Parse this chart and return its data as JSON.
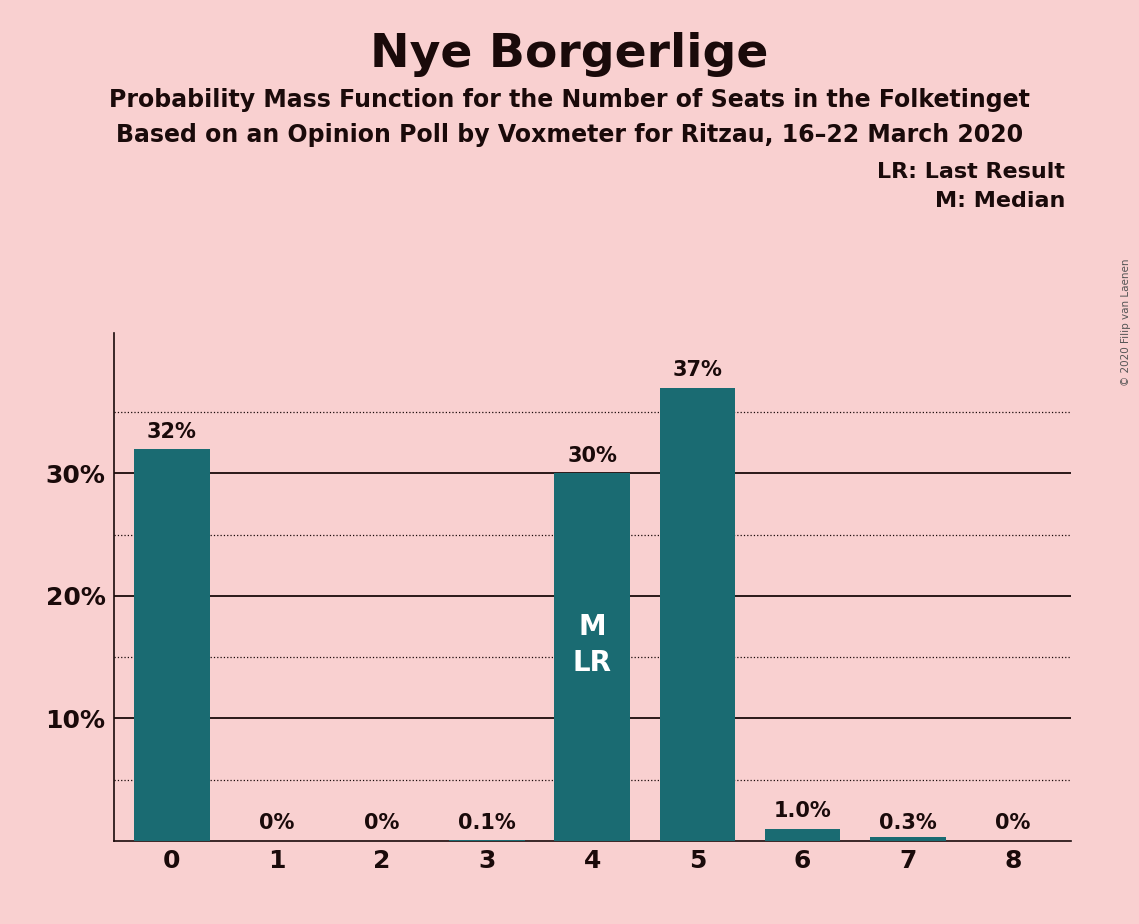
{
  "title": "Nye Borgerlige",
  "subtitle1": "Probability Mass Function for the Number of Seats in the Folketinget",
  "subtitle2": "Based on an Opinion Poll by Voxmeter for Ritzau, 16–22 March 2020",
  "categories": [
    0,
    1,
    2,
    3,
    4,
    5,
    6,
    7,
    8
  ],
  "values": [
    0.32,
    0.0,
    0.0,
    0.001,
    0.3,
    0.37,
    0.01,
    0.003,
    0.0
  ],
  "bar_color": "#1a6b72",
  "background_color": "#f9d0d0",
  "title_fontsize": 34,
  "subtitle_fontsize": 17,
  "bar_labels": [
    "32%",
    "0%",
    "0%",
    "0.1%",
    "30%",
    "37%",
    "1.0%",
    "0.3%",
    "0%"
  ],
  "median_bar": 4,
  "lr_bar": 4,
  "legend_text1": "LR: Last Result",
  "legend_text2": "M: Median",
  "watermark": "© 2020 Filip van Laenen",
  "ylim": [
    0,
    0.415
  ],
  "dotted_grid": [
    0.05,
    0.15,
    0.25,
    0.35
  ],
  "solid_grid": [
    0.1,
    0.2,
    0.3
  ],
  "ytick_positions": [
    0.1,
    0.2,
    0.3
  ],
  "ytick_labels": [
    "10%",
    "20%",
    "30%"
  ],
  "label_color": "#1a0a0a",
  "grid_color": "#1a0a0a",
  "spine_color": "#1a0a0a"
}
